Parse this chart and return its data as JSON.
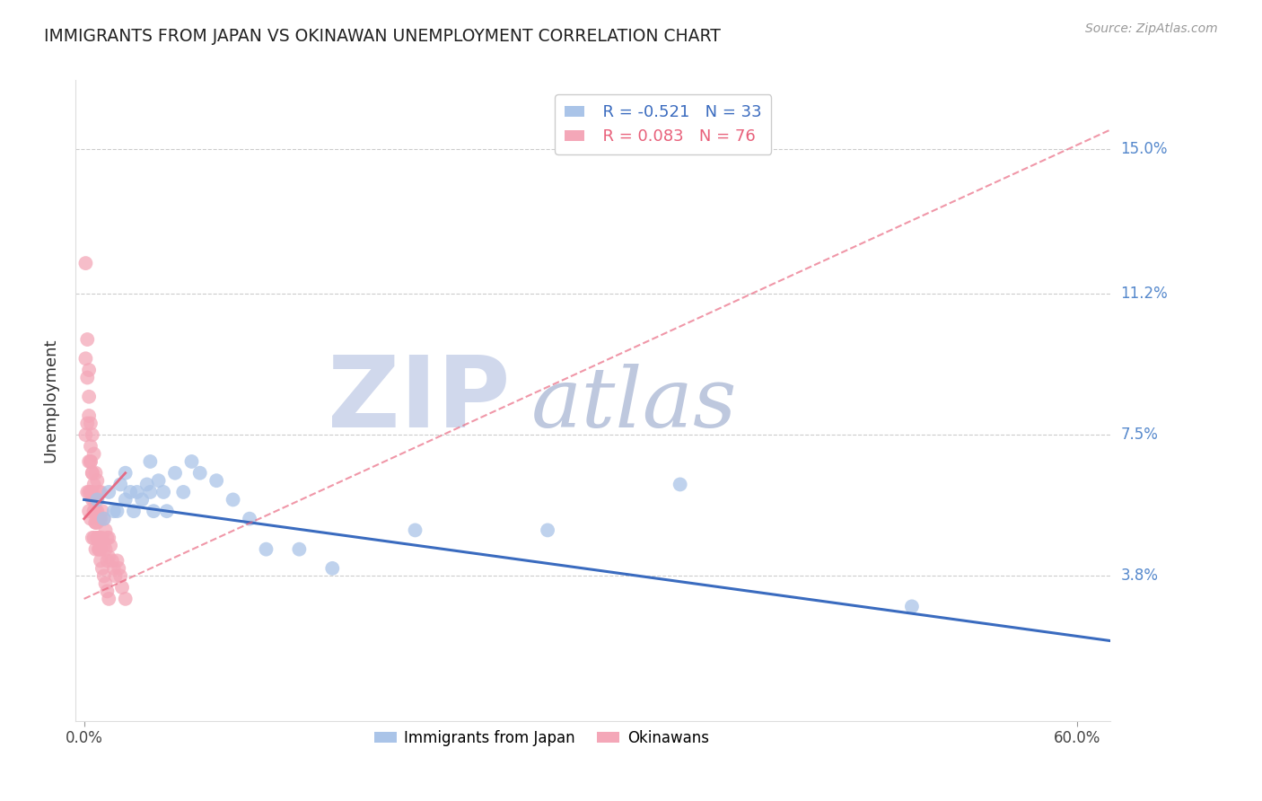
{
  "title": "IMMIGRANTS FROM JAPAN VS OKINAWAN UNEMPLOYMENT CORRELATION CHART",
  "source_text": "Source: ZipAtlas.com",
  "ylabel": "Unemployment",
  "xlim": [
    -0.005,
    0.62
  ],
  "ylim": [
    0.0,
    0.168
  ],
  "yticks": [
    0.038,
    0.075,
    0.112,
    0.15
  ],
  "ytick_labels": [
    "3.8%",
    "7.5%",
    "11.2%",
    "15.0%"
  ],
  "xticks": [
    0.0,
    0.6
  ],
  "xtick_labels": [
    "0.0%",
    "60.0%"
  ],
  "blue_R": -0.521,
  "blue_N": 33,
  "pink_R": 0.083,
  "pink_N": 76,
  "blue_color": "#aac4e8",
  "pink_color": "#f4a7b8",
  "blue_line_color": "#3a6bbf",
  "pink_line_color": "#e8607a",
  "grid_color": "#cccccc",
  "axis_label_color": "#5588cc",
  "watermark_zip_color": "#d0d8e8",
  "watermark_atlas_color": "#c0cce0",
  "title_color": "#222222",
  "blue_scatter_x": [
    0.008,
    0.012,
    0.015,
    0.018,
    0.02,
    0.022,
    0.025,
    0.025,
    0.028,
    0.03,
    0.032,
    0.035,
    0.038,
    0.04,
    0.04,
    0.042,
    0.045,
    0.048,
    0.05,
    0.055,
    0.06,
    0.065,
    0.07,
    0.08,
    0.09,
    0.1,
    0.11,
    0.13,
    0.15,
    0.2,
    0.28,
    0.36,
    0.5
  ],
  "blue_scatter_y": [
    0.058,
    0.053,
    0.06,
    0.055,
    0.055,
    0.062,
    0.058,
    0.065,
    0.06,
    0.055,
    0.06,
    0.058,
    0.062,
    0.06,
    0.068,
    0.055,
    0.063,
    0.06,
    0.055,
    0.065,
    0.06,
    0.068,
    0.065,
    0.063,
    0.058,
    0.053,
    0.045,
    0.045,
    0.04,
    0.05,
    0.05,
    0.062,
    0.03
  ],
  "pink_scatter_x": [
    0.001,
    0.001,
    0.001,
    0.002,
    0.002,
    0.002,
    0.002,
    0.003,
    0.003,
    0.003,
    0.003,
    0.003,
    0.004,
    0.004,
    0.004,
    0.004,
    0.005,
    0.005,
    0.005,
    0.005,
    0.006,
    0.006,
    0.006,
    0.006,
    0.007,
    0.007,
    0.007,
    0.007,
    0.008,
    0.008,
    0.008,
    0.009,
    0.009,
    0.009,
    0.01,
    0.01,
    0.01,
    0.011,
    0.011,
    0.012,
    0.012,
    0.013,
    0.013,
    0.014,
    0.014,
    0.015,
    0.015,
    0.016,
    0.017,
    0.018,
    0.019,
    0.02,
    0.021,
    0.022,
    0.023,
    0.025,
    0.003,
    0.004,
    0.005,
    0.006,
    0.007,
    0.008,
    0.009,
    0.01,
    0.004,
    0.005,
    0.006,
    0.007,
    0.008,
    0.009,
    0.01,
    0.011,
    0.012,
    0.013,
    0.014,
    0.015
  ],
  "pink_scatter_y": [
    0.12,
    0.095,
    0.075,
    0.1,
    0.09,
    0.078,
    0.06,
    0.092,
    0.08,
    0.068,
    0.06,
    0.055,
    0.078,
    0.068,
    0.06,
    0.053,
    0.075,
    0.065,
    0.058,
    0.048,
    0.07,
    0.062,
    0.055,
    0.048,
    0.065,
    0.058,
    0.052,
    0.045,
    0.063,
    0.055,
    0.048,
    0.06,
    0.053,
    0.045,
    0.06,
    0.053,
    0.048,
    0.055,
    0.048,
    0.053,
    0.046,
    0.05,
    0.045,
    0.048,
    0.042,
    0.048,
    0.043,
    0.046,
    0.042,
    0.04,
    0.038,
    0.042,
    0.04,
    0.038,
    0.035,
    0.032,
    0.085,
    0.072,
    0.065,
    0.058,
    0.055,
    0.052,
    0.048,
    0.045,
    0.068,
    0.06,
    0.055,
    0.052,
    0.048,
    0.045,
    0.042,
    0.04,
    0.038,
    0.036,
    0.034,
    0.032
  ],
  "blue_line_x0": 0.0,
  "blue_line_x1": 0.62,
  "blue_line_y0": 0.058,
  "blue_line_y1": 0.021,
  "pink_line_x0": 0.0,
  "pink_line_x1": 0.62,
  "pink_line_y0": 0.032,
  "pink_line_y1": 0.155
}
